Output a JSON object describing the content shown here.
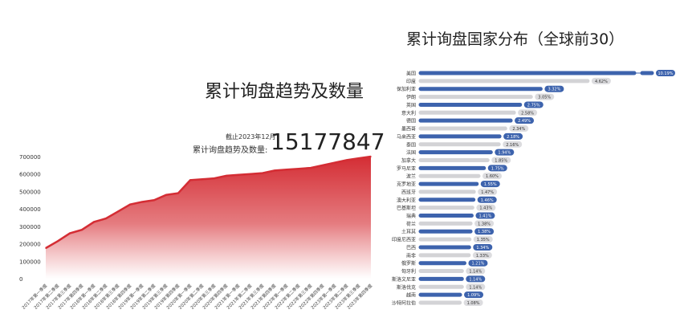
{
  "left_panel": {
    "title": "累计询盘趋势及数量",
    "as_of": "截止2023年12月",
    "total_label": "累计询盘趋势及数量:",
    "total_value": "15177847"
  },
  "right_panel": {
    "title": "累计询盘国家分布（全球前30）"
  },
  "chart_data": [
    {
      "type": "area",
      "title": "累计询盘趋势及数量",
      "color": "#d42d34",
      "ylim": [
        0,
        700000
      ],
      "yticks": [
        "0",
        "100000",
        "200000",
        "300000",
        "400000",
        "500000",
        "600000",
        "700000"
      ],
      "categories": [
        "2017年第一季度",
        "2017年第二季度",
        "2017年第三季度",
        "2017年第四季度",
        "2018年第一季度",
        "2018年第二季度",
        "2018年第三季度",
        "2018年第四季度",
        "2019年第一季度",
        "2019年第二季度",
        "2019年第三季度",
        "2019年第四季度",
        "2020年第一季度",
        "2020年第二季度",
        "2020年第三季度",
        "2020年第四季度",
        "2021年第一季度",
        "2021年第二季度",
        "2021年第三季度",
        "2021年第四季度",
        "2022年第一季度",
        "2022年第二季度",
        "2022年第三季度",
        "2022年第四季度",
        "2023年第一季度",
        "2023年第二季度",
        "2023年第三季度",
        "2023年第四季度"
      ],
      "values": [
        175000,
        215000,
        260000,
        280000,
        325000,
        345000,
        385000,
        425000,
        440000,
        450000,
        480000,
        490000,
        565000,
        570000,
        575000,
        590000,
        595000,
        600000,
        605000,
        620000,
        625000,
        630000,
        635000,
        650000,
        665000,
        680000,
        690000,
        700000
      ]
    },
    {
      "type": "bar",
      "orientation": "horizontal",
      "title": "累计询盘国家分布（全球前30）",
      "colors": [
        "#3d63ad",
        "#d3d3d6"
      ],
      "categories": [
        "美国",
        "印度",
        "保加利亚",
        "伊朗",
        "英国",
        "意大利",
        "德国",
        "墨西哥",
        "马来西亚",
        "泰国",
        "法国",
        "加拿大",
        "罗马尼亚",
        "波兰",
        "克罗地亚",
        "西班牙",
        "澳大利亚",
        "巴基斯坦",
        "瑞典",
        "荷兰",
        "土耳其",
        "印度尼西亚",
        "巴西",
        "南非",
        "俄罗斯",
        "匈牙利",
        "斯洛文尼亚",
        "斯洛伐克",
        "越南",
        "沙特阿拉伯"
      ],
      "values": [
        10.19,
        4.62,
        3.32,
        3.05,
        2.75,
        2.58,
        2.49,
        2.34,
        2.18,
        2.16,
        1.94,
        1.85,
        1.75,
        1.6,
        1.55,
        1.47,
        1.46,
        1.43,
        1.41,
        1.38,
        1.38,
        1.35,
        1.34,
        1.33,
        1.21,
        1.14,
        1.14,
        1.14,
        1.09,
        1.08
      ],
      "labels": [
        "10.19%",
        "4.62%",
        "3.32%",
        "3.05%",
        "2.75%",
        "2.58%",
        "2.49%",
        "2.34%",
        "2.18%",
        "2.16%",
        "1.94%",
        "1.85%",
        "1.75%",
        "1.60%",
        "1.55%",
        "1.47%",
        "1.46%",
        "1.43%",
        "1.41%",
        "1.38%",
        "1.38%",
        "1.35%",
        "1.34%",
        "1.33%",
        "1.21%",
        "1.14%",
        "1.14%",
        "1.14%",
        "1.09%",
        "1.08%"
      ],
      "axis_break": true
    }
  ]
}
